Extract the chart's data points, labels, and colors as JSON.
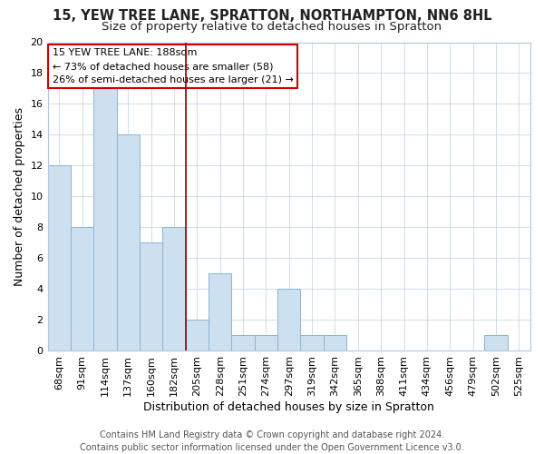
{
  "title": "15, YEW TREE LANE, SPRATTON, NORTHAMPTON, NN6 8HL",
  "subtitle": "Size of property relative to detached houses in Spratton",
  "xlabel": "Distribution of detached houses by size in Spratton",
  "ylabel": "Number of detached properties",
  "bar_labels": [
    "68sqm",
    "91sqm",
    "114sqm",
    "137sqm",
    "160sqm",
    "182sqm",
    "205sqm",
    "228sqm",
    "251sqm",
    "274sqm",
    "297sqm",
    "319sqm",
    "342sqm",
    "365sqm",
    "388sqm",
    "411sqm",
    "434sqm",
    "456sqm",
    "479sqm",
    "502sqm",
    "525sqm"
  ],
  "bar_values": [
    12,
    8,
    17,
    14,
    7,
    8,
    2,
    5,
    1,
    1,
    4,
    1,
    1,
    0,
    0,
    0,
    0,
    0,
    0,
    1,
    0
  ],
  "bar_color": "#cce0f0",
  "bar_edge_color": "#8ab4d4",
  "highlight_line_color": "#8b0000",
  "vline_x": 5.5,
  "ylim": [
    0,
    20
  ],
  "yticks": [
    0,
    2,
    4,
    6,
    8,
    10,
    12,
    14,
    16,
    18,
    20
  ],
  "annotation_title": "15 YEW TREE LANE: 188sqm",
  "annotation_line1": "← 73% of detached houses are smaller (58)",
  "annotation_line2": "26% of semi-detached houses are larger (21) →",
  "footer_line1": "Contains HM Land Registry data © Crown copyright and database right 2024.",
  "footer_line2": "Contains public sector information licensed under the Open Government Licence v3.0.",
  "title_fontsize": 10.5,
  "subtitle_fontsize": 9.5,
  "axis_label_fontsize": 9,
  "tick_fontsize": 8,
  "annotation_fontsize": 8,
  "footer_fontsize": 7
}
